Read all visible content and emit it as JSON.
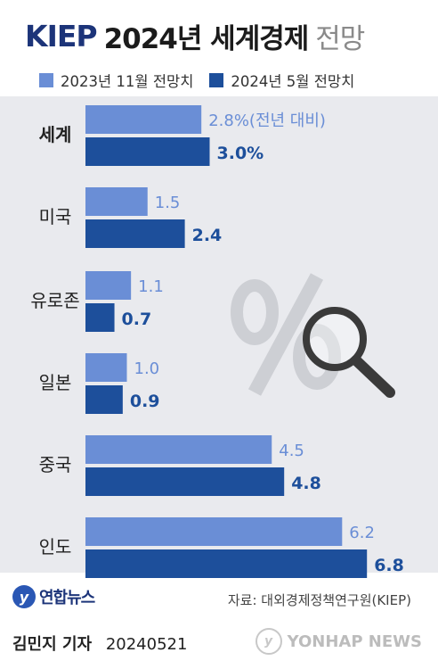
{
  "header": {
    "logo_text": "KIEP",
    "title_main": "2024년 세계경제",
    "title_sub": "전망"
  },
  "legend": [
    {
      "label": "2023년 11월 전망치",
      "color": "#6a8ed6"
    },
    {
      "label": "2024년 5월 전망치",
      "color": "#1d4f9b"
    }
  ],
  "chart_data": {
    "type": "bar",
    "orientation": "horizontal",
    "categories": [
      "세계",
      "미국",
      "유로존",
      "일본",
      "중국",
      "인도"
    ],
    "series": [
      {
        "name": "2023년 11월 전망치",
        "values": [
          2.8,
          1.5,
          1.1,
          1.0,
          4.5,
          6.2
        ],
        "color": "#6a8ed6"
      },
      {
        "name": "2024년 5월 전망치",
        "values": [
          3.0,
          2.4,
          0.7,
          0.9,
          4.8,
          6.8
        ],
        "color": "#1d4f9b"
      }
    ],
    "data_labels": {
      "old": [
        "2.8%(전년 대비)",
        "1.5",
        "1.1",
        "1.0",
        "4.5",
        "6.2"
      ],
      "new": [
        "3.0%",
        "2.4",
        "0.7",
        "0.9",
        "4.8",
        "6.8"
      ]
    }
  },
  "footer": {
    "source": "자료: 대외경제정책연구원(KIEP)",
    "logo_text": "연합뉴스",
    "reporter": "김민지 기자",
    "date": "20240521",
    "watermark": "YONHAP NEWS"
  }
}
